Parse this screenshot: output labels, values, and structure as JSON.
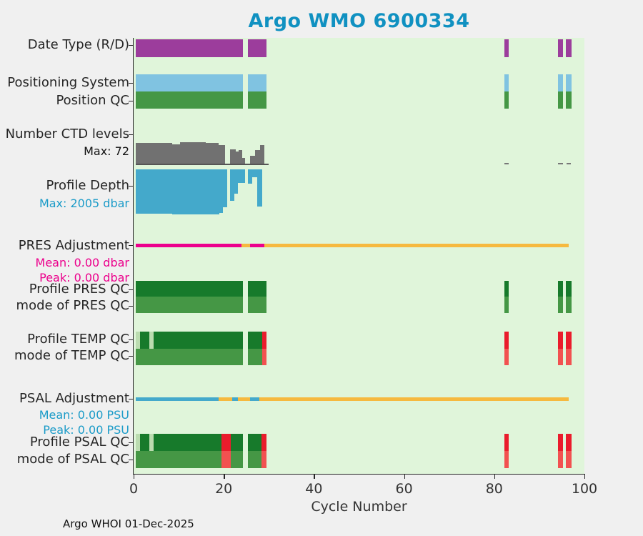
{
  "title": "Argo WMO 6900334",
  "footer": "Argo WHOI 01-Dec-2025",
  "colors": {
    "purple": "#9c3d9c",
    "lightblue": "#80c3e1",
    "green": "#459745",
    "darkgreen": "#177a2b",
    "palegreen": "#bbdcb0",
    "gray": "#717171",
    "depthblue": "#44a9cb",
    "magenta": "#ec008c",
    "orange": "#f6b93f",
    "red": "#ea1c2c",
    "salmon": "#f25150",
    "title_teal": "#1091c1",
    "plot_bg": "#e0f5da",
    "page_bg": "#f0f0f0"
  },
  "chart_data": {
    "type": "bar",
    "title": "Argo WMO 6900334",
    "x_axis": {
      "label": "Cycle Number",
      "ticks": [
        0,
        20,
        40,
        60,
        80,
        100
      ],
      "xlim": [
        0,
        100
      ]
    },
    "grid": false,
    "rows": [
      {
        "id": "date_type",
        "label": "Date Type (R/D)",
        "kind": "segments",
        "segments": [
          {
            "start": 0.4,
            "end": 24.2,
            "color": "purple"
          },
          {
            "start": 25.3,
            "end": 29.4,
            "color": "purple"
          },
          {
            "start": 82.2,
            "end": 83.2,
            "color": "purple"
          },
          {
            "start": 94.1,
            "end": 95.3,
            "color": "purple"
          },
          {
            "start": 95.9,
            "end": 97.1,
            "color": "purple"
          }
        ]
      },
      {
        "id": "positioning_system",
        "label": "Positioning System",
        "kind": "segments",
        "segments": [
          {
            "start": 0.4,
            "end": 24.2,
            "color": "lightblue"
          },
          {
            "start": 25.3,
            "end": 29.4,
            "color": "lightblue"
          },
          {
            "start": 82.2,
            "end": 83.2,
            "color": "lightblue"
          },
          {
            "start": 94.1,
            "end": 95.3,
            "color": "lightblue"
          },
          {
            "start": 95.9,
            "end": 97.1,
            "color": "lightblue"
          }
        ]
      },
      {
        "id": "position_qc",
        "label": "Position QC",
        "kind": "segments",
        "segments": [
          {
            "start": 0.4,
            "end": 24.2,
            "color": "green"
          },
          {
            "start": 25.3,
            "end": 29.4,
            "color": "green"
          },
          {
            "start": 82.2,
            "end": 83.2,
            "color": "green"
          },
          {
            "start": 94.1,
            "end": 95.3,
            "color": "green"
          },
          {
            "start": 95.9,
            "end": 97.1,
            "color": "green"
          }
        ]
      },
      {
        "id": "ctd_levels",
        "label": "Number CTD levels",
        "max_label": "Max: 72",
        "kind": "histogram_up",
        "max": 72,
        "color": "gray",
        "baseline": {
          "start": 0.4,
          "end": 30.0
        },
        "bars": [
          {
            "start": 0.4,
            "end": 8.6,
            "value": 70
          },
          {
            "start": 8.6,
            "end": 10.3,
            "value": 64
          },
          {
            "start": 10.3,
            "end": 13.0,
            "value": 72
          },
          {
            "start": 13.0,
            "end": 16.0,
            "value": 71
          },
          {
            "start": 16.0,
            "end": 18.9,
            "value": 69
          },
          {
            "start": 18.9,
            "end": 20.3,
            "value": 63
          },
          {
            "start": 21.4,
            "end": 22.6,
            "value": 48
          },
          {
            "start": 22.6,
            "end": 23.3,
            "value": 40
          },
          {
            "start": 23.3,
            "end": 24.1,
            "value": 46
          },
          {
            "start": 24.1,
            "end": 24.8,
            "value": 18
          },
          {
            "start": 25.9,
            "end": 27.0,
            "value": 26
          },
          {
            "start": 27.0,
            "end": 28.1,
            "value": 46
          },
          {
            "start": 28.1,
            "end": 29.0,
            "value": 62
          },
          {
            "start": 82.3,
            "end": 83.2,
            "value": 0
          },
          {
            "start": 94.2,
            "end": 95.2,
            "value": 0
          },
          {
            "start": 96.0,
            "end": 97.0,
            "value": 0
          }
        ]
      },
      {
        "id": "profile_depth",
        "label": "Profile Depth",
        "max_label": "Max: 2005 dbar",
        "kind": "histogram_down",
        "max": 2005,
        "color": "depthblue",
        "bars": [
          {
            "start": 0.4,
            "end": 8.6,
            "value": 1980
          },
          {
            "start": 8.6,
            "end": 19.0,
            "value": 2005
          },
          {
            "start": 19.0,
            "end": 19.8,
            "value": 1950
          },
          {
            "start": 19.8,
            "end": 20.8,
            "value": 1680
          },
          {
            "start": 21.4,
            "end": 22.4,
            "value": 1410
          },
          {
            "start": 22.4,
            "end": 23.2,
            "value": 1085
          },
          {
            "start": 23.2,
            "end": 24.8,
            "value": 600
          },
          {
            "start": 25.3,
            "end": 26.3,
            "value": 650
          },
          {
            "start": 26.3,
            "end": 27.4,
            "value": 350
          },
          {
            "start": 27.4,
            "end": 28.5,
            "value": 1650
          }
        ]
      },
      {
        "id": "pres_adjustment",
        "label": "PRES Adjustment",
        "mean_label": "Mean: 0.00 dbar",
        "peak_label": "Peak: 0.00 dbar",
        "kind": "line",
        "segments": [
          {
            "start": 0.4,
            "end": 23.9,
            "color": "magenta"
          },
          {
            "start": 23.9,
            "end": 25.8,
            "color": "orange"
          },
          {
            "start": 25.8,
            "end": 29.0,
            "color": "magenta"
          },
          {
            "start": 29.0,
            "end": 96.5,
            "color": "orange"
          }
        ]
      },
      {
        "id": "profile_pres_qc",
        "label": "Profile PRES QC",
        "kind": "segments",
        "segments": [
          {
            "start": 0.4,
            "end": 24.2,
            "color": "darkgreen"
          },
          {
            "start": 25.3,
            "end": 29.4,
            "color": "darkgreen"
          },
          {
            "start": 82.2,
            "end": 83.2,
            "color": "darkgreen"
          },
          {
            "start": 94.1,
            "end": 95.3,
            "color": "darkgreen"
          },
          {
            "start": 95.9,
            "end": 97.1,
            "color": "darkgreen"
          }
        ]
      },
      {
        "id": "mode_pres_qc",
        "label": "mode of PRES QC",
        "kind": "segments",
        "segments": [
          {
            "start": 0.4,
            "end": 24.2,
            "color": "green"
          },
          {
            "start": 25.3,
            "end": 29.4,
            "color": "green"
          },
          {
            "start": 82.2,
            "end": 83.2,
            "color": "green"
          },
          {
            "start": 94.1,
            "end": 95.3,
            "color": "green"
          },
          {
            "start": 95.9,
            "end": 97.1,
            "color": "green"
          }
        ]
      },
      {
        "id": "profile_temp_qc",
        "label": "Profile TEMP QC",
        "kind": "segments",
        "segments": [
          {
            "start": 0.4,
            "end": 1.4,
            "color": "palegreen"
          },
          {
            "start": 1.4,
            "end": 3.5,
            "color": "darkgreen"
          },
          {
            "start": 3.5,
            "end": 4.4,
            "color": "palegreen"
          },
          {
            "start": 4.4,
            "end": 24.2,
            "color": "darkgreen"
          },
          {
            "start": 25.3,
            "end": 28.6,
            "color": "darkgreen"
          },
          {
            "start": 28.6,
            "end": 29.4,
            "color": "red"
          },
          {
            "start": 82.2,
            "end": 83.2,
            "color": "red"
          },
          {
            "start": 94.1,
            "end": 95.3,
            "color": "red"
          },
          {
            "start": 95.9,
            "end": 97.1,
            "color": "red"
          }
        ]
      },
      {
        "id": "mode_temp_qc",
        "label": "mode of TEMP QC",
        "kind": "segments",
        "segments": [
          {
            "start": 0.4,
            "end": 24.2,
            "color": "green"
          },
          {
            "start": 25.3,
            "end": 28.6,
            "color": "green"
          },
          {
            "start": 28.6,
            "end": 29.4,
            "color": "salmon"
          },
          {
            "start": 82.2,
            "end": 83.2,
            "color": "salmon"
          },
          {
            "start": 94.1,
            "end": 95.3,
            "color": "salmon"
          },
          {
            "start": 95.9,
            "end": 97.1,
            "color": "salmon"
          }
        ]
      },
      {
        "id": "psal_adjustment",
        "label": "PSAL Adjustment",
        "mean_label": "Mean: 0.00 PSU",
        "peak_label": "Peak: 0.00 PSU",
        "kind": "line",
        "segments": [
          {
            "start": 0.4,
            "end": 18.8,
            "color": "depthblue"
          },
          {
            "start": 18.8,
            "end": 21.9,
            "color": "orange"
          },
          {
            "start": 21.9,
            "end": 23.2,
            "color": "depthblue"
          },
          {
            "start": 23.2,
            "end": 25.8,
            "color": "orange"
          },
          {
            "start": 25.8,
            "end": 27.9,
            "color": "depthblue"
          },
          {
            "start": 27.9,
            "end": 96.5,
            "color": "orange"
          }
        ]
      },
      {
        "id": "profile_psal_qc",
        "label": "Profile PSAL QC",
        "kind": "segments",
        "segments": [
          {
            "start": 0.4,
            "end": 1.4,
            "color": "palegreen"
          },
          {
            "start": 1.4,
            "end": 3.5,
            "color": "darkgreen"
          },
          {
            "start": 3.5,
            "end": 4.4,
            "color": "palegreen"
          },
          {
            "start": 4.4,
            "end": 19.5,
            "color": "darkgreen"
          },
          {
            "start": 19.5,
            "end": 21.6,
            "color": "red"
          },
          {
            "start": 21.6,
            "end": 24.2,
            "color": "darkgreen"
          },
          {
            "start": 25.3,
            "end": 28.4,
            "color": "darkgreen"
          },
          {
            "start": 28.4,
            "end": 29.4,
            "color": "red"
          },
          {
            "start": 82.2,
            "end": 83.2,
            "color": "red"
          },
          {
            "start": 94.1,
            "end": 95.3,
            "color": "red"
          },
          {
            "start": 95.9,
            "end": 97.1,
            "color": "red"
          }
        ]
      },
      {
        "id": "mode_psal_qc",
        "label": "mode of PSAL QC",
        "kind": "segments",
        "segments": [
          {
            "start": 0.4,
            "end": 19.5,
            "color": "green"
          },
          {
            "start": 19.5,
            "end": 21.6,
            "color": "salmon"
          },
          {
            "start": 21.6,
            "end": 24.2,
            "color": "green"
          },
          {
            "start": 25.3,
            "end": 28.4,
            "color": "green"
          },
          {
            "start": 28.4,
            "end": 29.4,
            "color": "salmon"
          },
          {
            "start": 82.2,
            "end": 83.2,
            "color": "salmon"
          },
          {
            "start": 94.1,
            "end": 95.3,
            "color": "salmon"
          },
          {
            "start": 95.9,
            "end": 97.1,
            "color": "salmon"
          }
        ]
      }
    ]
  }
}
